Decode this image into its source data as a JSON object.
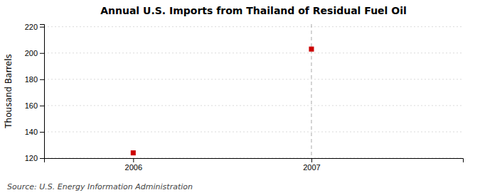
{
  "chart_data": {
    "type": "scatter",
    "title": "Annual U.S. Imports from Thailand of Residual Fuel Oil",
    "y_label": "Thousand Barrels",
    "source": "Source: U.S. Energy Information Administration",
    "x": [
      2006,
      2007
    ],
    "values": [
      124,
      203
    ],
    "color": "#cc0000",
    "marker": "square",
    "xlim": [
      2005.5,
      2007.85
    ],
    "ylim": [
      120,
      222
    ],
    "xticks": [
      2006,
      2007
    ],
    "yticks": [
      120,
      140,
      160,
      180,
      200,
      220
    ],
    "grid": true,
    "vline": {
      "x": 2007,
      "color": "#aaaaaa"
    }
  }
}
